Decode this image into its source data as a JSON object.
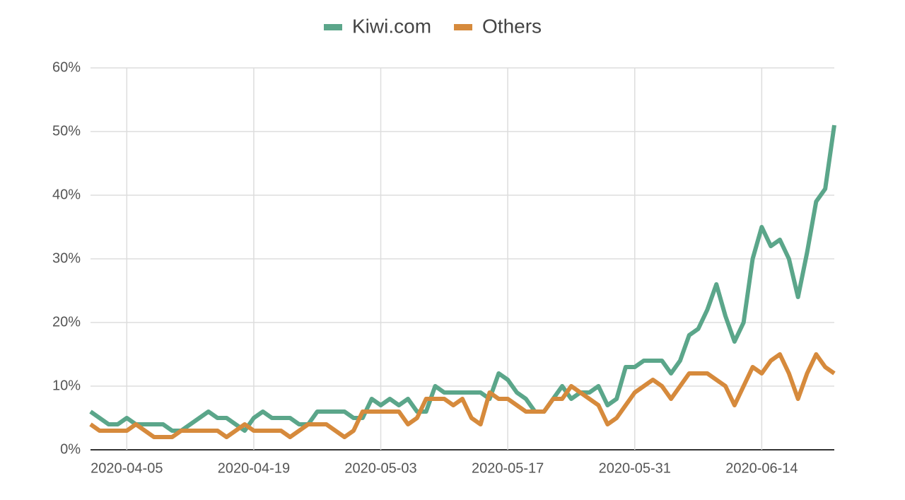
{
  "chart_data": {
    "type": "line",
    "x": [
      "2020-04-01",
      "2020-04-02",
      "2020-04-03",
      "2020-04-04",
      "2020-04-05",
      "2020-04-06",
      "2020-04-07",
      "2020-04-08",
      "2020-04-09",
      "2020-04-10",
      "2020-04-11",
      "2020-04-12",
      "2020-04-13",
      "2020-04-14",
      "2020-04-15",
      "2020-04-16",
      "2020-04-17",
      "2020-04-18",
      "2020-04-19",
      "2020-04-20",
      "2020-04-21",
      "2020-04-22",
      "2020-04-23",
      "2020-04-24",
      "2020-04-25",
      "2020-04-26",
      "2020-04-27",
      "2020-04-28",
      "2020-04-29",
      "2020-04-30",
      "2020-05-01",
      "2020-05-02",
      "2020-05-03",
      "2020-05-04",
      "2020-05-05",
      "2020-05-06",
      "2020-05-07",
      "2020-05-08",
      "2020-05-09",
      "2020-05-10",
      "2020-05-11",
      "2020-05-12",
      "2020-05-13",
      "2020-05-14",
      "2020-05-15",
      "2020-05-16",
      "2020-05-17",
      "2020-05-18",
      "2020-05-19",
      "2020-05-20",
      "2020-05-21",
      "2020-05-22",
      "2020-05-23",
      "2020-05-24",
      "2020-05-25",
      "2020-05-26",
      "2020-05-27",
      "2020-05-28",
      "2020-05-29",
      "2020-05-30",
      "2020-05-31",
      "2020-06-01",
      "2020-06-02",
      "2020-06-03",
      "2020-06-04",
      "2020-06-05",
      "2020-06-06",
      "2020-06-07",
      "2020-06-08",
      "2020-06-09",
      "2020-06-10",
      "2020-06-11",
      "2020-06-12",
      "2020-06-13",
      "2020-06-14",
      "2020-06-15",
      "2020-06-16",
      "2020-06-17",
      "2020-06-18",
      "2020-06-19",
      "2020-06-20",
      "2020-06-21",
      "2020-06-22"
    ],
    "series": [
      {
        "name": "Kiwi.com",
        "color": "#5ba68a",
        "values": [
          6,
          5,
          4,
          4,
          5,
          4,
          4,
          4,
          4,
          3,
          3,
          4,
          5,
          6,
          5,
          5,
          4,
          3,
          5,
          6,
          5,
          5,
          5,
          4,
          4,
          6,
          6,
          6,
          6,
          5,
          5,
          8,
          7,
          8,
          7,
          8,
          6,
          6,
          10,
          9,
          9,
          9,
          9,
          9,
          8,
          12,
          11,
          9,
          8,
          6,
          6,
          8,
          10,
          8,
          9,
          9,
          10,
          7,
          8,
          13,
          13,
          14,
          14,
          14,
          12,
          14,
          18,
          19,
          22,
          26,
          21,
          17,
          20,
          30,
          35,
          32,
          33,
          30,
          24,
          31,
          39,
          41,
          51
        ]
      },
      {
        "name": "Others",
        "color": "#d68a3c",
        "values": [
          4,
          3,
          3,
          3,
          3,
          4,
          3,
          2,
          2,
          2,
          3,
          3,
          3,
          3,
          3,
          2,
          3,
          4,
          3,
          3,
          3,
          3,
          2,
          3,
          4,
          4,
          4,
          3,
          2,
          3,
          6,
          6,
          6,
          6,
          6,
          4,
          5,
          8,
          8,
          8,
          7,
          8,
          5,
          4,
          9,
          8,
          8,
          7,
          6,
          6,
          6,
          8,
          8,
          10,
          9,
          8,
          7,
          4,
          5,
          7,
          9,
          10,
          11,
          10,
          8,
          10,
          12,
          12,
          12,
          11,
          10,
          7,
          10,
          13,
          12,
          14,
          15,
          12,
          8,
          12,
          15,
          13,
          12
        ]
      }
    ],
    "xlim": [
      "2020-04-01",
      "2020-06-22"
    ],
    "xticks": [
      "2020-04-05",
      "2020-04-19",
      "2020-05-03",
      "2020-05-17",
      "2020-05-31",
      "2020-06-14"
    ],
    "ylim": [
      0,
      60
    ],
    "yticks": [
      {
        "value": 0,
        "label": "0%"
      },
      {
        "value": 10,
        "label": "10%"
      },
      {
        "value": 20,
        "label": "20%"
      },
      {
        "value": 30,
        "label": "30%"
      },
      {
        "value": 40,
        "label": "40%"
      },
      {
        "value": 50,
        "label": "50%"
      },
      {
        "value": 60,
        "label": "60%"
      }
    ],
    "grid": true,
    "legend": "top"
  }
}
